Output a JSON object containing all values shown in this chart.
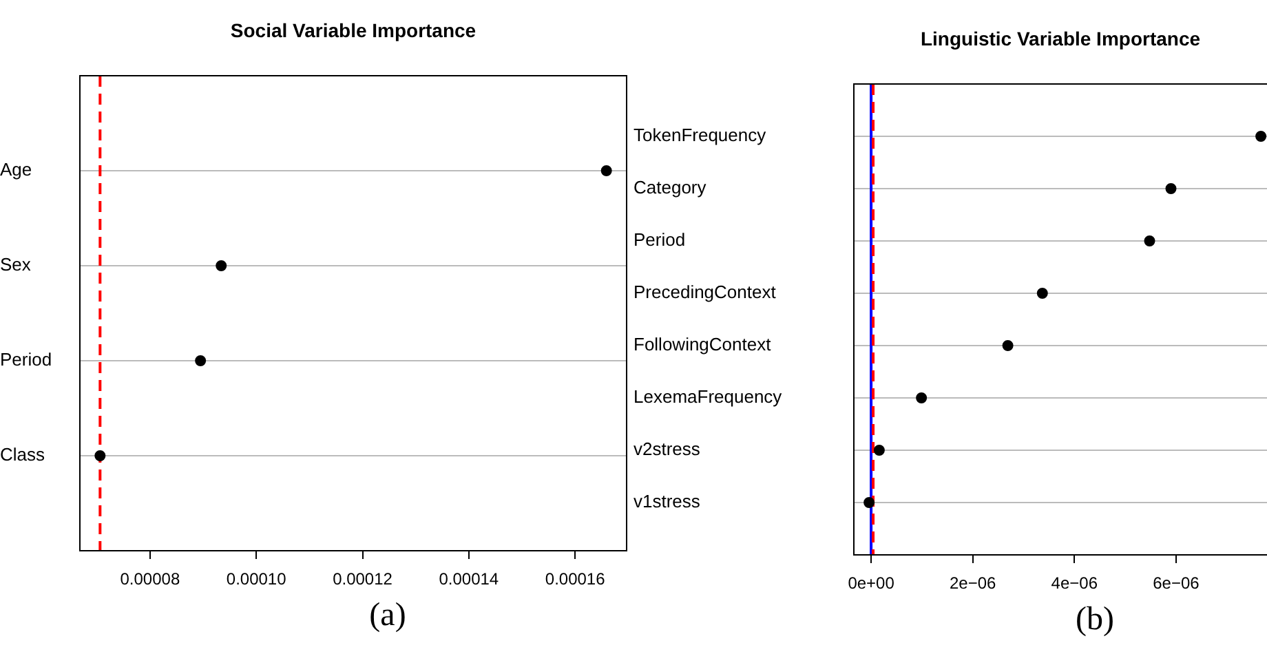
{
  "chart_data": [
    {
      "type": "scatter",
      "title": "Social Variable Importance",
      "orientation": "horizontal",
      "categories": [
        "Age",
        "Sex",
        "Period",
        "Class"
      ],
      "values": [
        0.0001659,
        9.34e-05,
        8.95e-05,
        7.06e-05
      ],
      "color": "#000000",
      "marker": "circle",
      "xlim": [
        6.68e-05,
        0.0001697
      ],
      "xticks": [
        {
          "value": 8e-05,
          "label": "0.00008"
        },
        {
          "value": 0.0001,
          "label": "0.00010"
        },
        {
          "value": 0.00012,
          "label": "0.00012"
        },
        {
          "value": 0.00014,
          "label": "0.00014"
        },
        {
          "value": 0.00016,
          "label": "0.00016"
        }
      ],
      "grid": "y",
      "ref_lines": [
        {
          "axis": "x",
          "value": 7.06e-05,
          "color": "#ff0000",
          "line_style": "dashed"
        }
      ],
      "annotations": [
        "(a)"
      ]
    },
    {
      "type": "scatter",
      "title": "Linguistic Variable Importance",
      "orientation": "horizontal",
      "categories": [
        "TokenFrequency",
        "Category",
        "Period",
        "PrecedingContext",
        "FollowingContext",
        "LexemaFrequency",
        "v2stress",
        "v1stress"
      ],
      "values": [
        7.67e-06,
        5.9e-06,
        5.48e-06,
        3.37e-06,
        2.69e-06,
        9.9e-07,
        1.6e-07,
        -4e-08
      ],
      "color": "#000000",
      "marker": "circle",
      "xlim": [
        -3.4e-07,
        7.98e-06
      ],
      "xticks": [
        {
          "value": 0,
          "label": "0e+00"
        },
        {
          "value": 2e-06,
          "label": "2e−06"
        },
        {
          "value": 4e-06,
          "label": "4e−06"
        },
        {
          "value": 6e-06,
          "label": "6e−06"
        }
      ],
      "grid": "y",
      "ref_lines": [
        {
          "axis": "x",
          "value": 0,
          "color": "#0000ff",
          "line_style": "solid"
        },
        {
          "axis": "x",
          "value": 4e-08,
          "color": "#ff0000",
          "line_style": "dashed"
        }
      ],
      "annotations": [
        "(b)"
      ]
    }
  ]
}
